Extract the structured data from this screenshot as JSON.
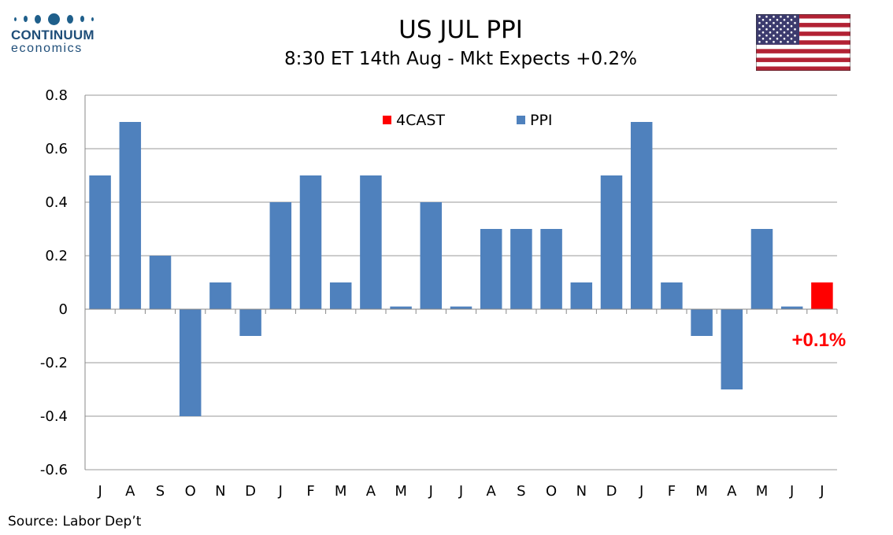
{
  "logo": {
    "name": "CONTINUUM",
    "sub": "economics"
  },
  "header": {
    "title": "US JUL PPI",
    "subtitle": "8:30 ET 14th Aug - Mkt Expects +0.2%"
  },
  "source": "Source: Labor Dep’t",
  "colors": {
    "ppi": "#4f81bd",
    "forecast": "#ff0000",
    "grid": "#9a9a9a",
    "annotation": "#ff0000"
  },
  "chart_data": {
    "type": "bar",
    "categories": [
      "J",
      "A",
      "S",
      "O",
      "N",
      "D",
      "J",
      "F",
      "M",
      "A",
      "M",
      "J",
      "J",
      "A",
      "S",
      "O",
      "N",
      "D",
      "J",
      "F",
      "M",
      "A",
      "M",
      "J",
      "J"
    ],
    "series": [
      {
        "name": "4CAST",
        "color": "#ff0000",
        "values": [
          null,
          null,
          null,
          null,
          null,
          null,
          null,
          null,
          null,
          null,
          null,
          null,
          null,
          null,
          null,
          null,
          null,
          null,
          null,
          null,
          null,
          null,
          null,
          null,
          0.1
        ]
      },
      {
        "name": "PPI",
        "color": "#4f81bd",
        "values": [
          0.5,
          0.7,
          0.2,
          -0.4,
          0.1,
          -0.1,
          0.4,
          0.5,
          0.1,
          0.5,
          0.01,
          0.4,
          0.01,
          0.3,
          0.3,
          0.3,
          0.1,
          0.5,
          0.7,
          0.1,
          -0.1,
          -0.3,
          0.3,
          0.01,
          null
        ]
      }
    ],
    "ylim": [
      -0.6,
      0.8
    ],
    "yticks": [
      -0.6,
      -0.4,
      -0.2,
      0,
      0.2,
      0.4,
      0.6,
      0.8
    ],
    "ytick_labels": [
      "-0.6",
      "-0.4",
      "-0.2",
      "0",
      "0.2",
      "0.4",
      "0.6",
      "0.8"
    ],
    "grid": true,
    "legend_position": "top-center",
    "annotation": "+0.1%"
  }
}
